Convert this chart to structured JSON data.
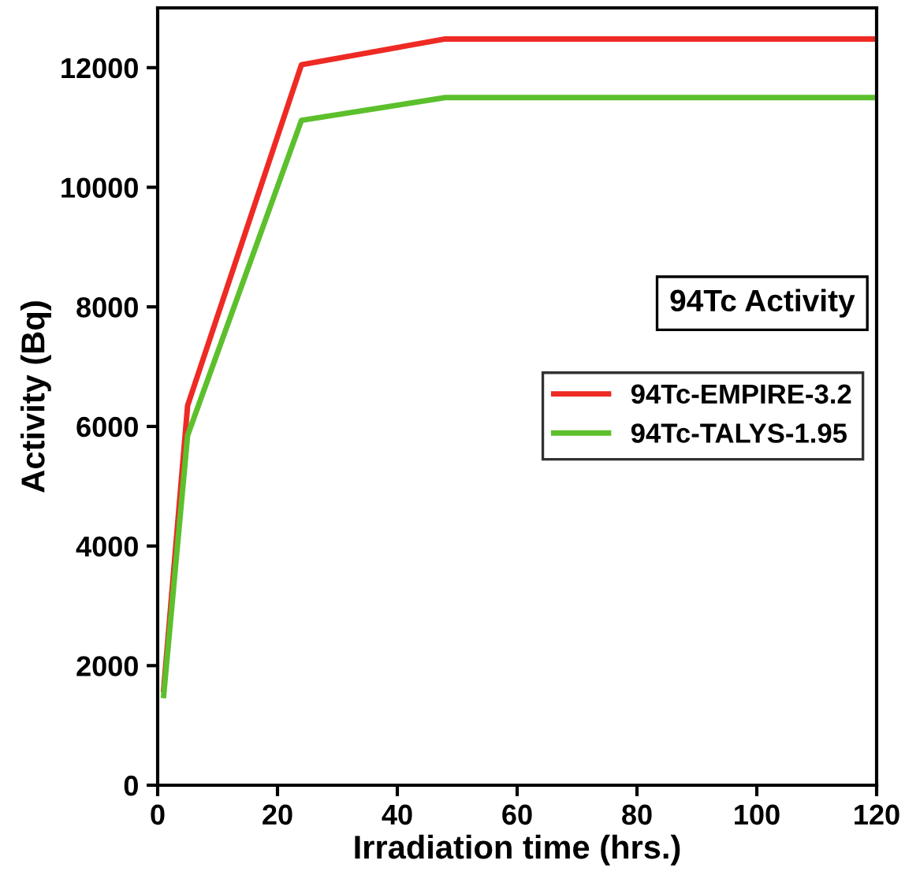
{
  "chart_data": {
    "type": "line",
    "xlabel": "Irradiation time (hrs.)",
    "ylabel": "Activity (Bq)",
    "annotations": [
      "94Tc Activity"
    ],
    "x": [
      1,
      5,
      24,
      48,
      120
    ],
    "series": [
      {
        "name": "94Tc-EMPIRE-3.2",
        "color": "#ee2a24",
        "values": [
          1600,
          6350,
          12050,
          12480,
          12480
        ]
      },
      {
        "name": "94Tc-TALYS-1.95",
        "color": "#5cc02d",
        "values": [
          1500,
          5850,
          11120,
          11500,
          11500
        ]
      }
    ],
    "xlim": [
      0,
      120
    ],
    "xticks": [
      0,
      20,
      40,
      60,
      80,
      100,
      120
    ],
    "ylim": [
      0,
      13000
    ],
    "yticks": [
      0,
      2000,
      4000,
      6000,
      8000,
      10000,
      12000
    ],
    "grid": false,
    "legend": "center right",
    "marker": "none",
    "line_style": "solid"
  }
}
